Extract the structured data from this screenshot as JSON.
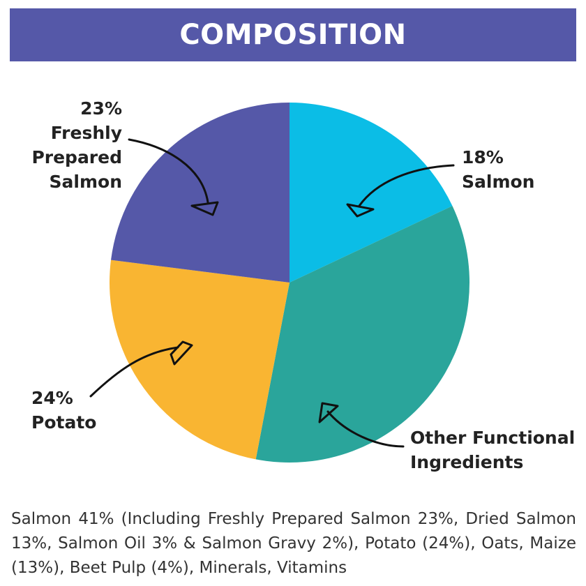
{
  "header": {
    "title": "COMPOSITION"
  },
  "chart_data": {
    "type": "pie",
    "title": "COMPOSITION",
    "slices": [
      {
        "label_lines": [
          "18%",
          "Salmon"
        ],
        "value": 18,
        "color": "#0bbde6"
      },
      {
        "label_lines": [
          "Other Functional",
          "Ingredients"
        ],
        "value": 35,
        "color": "#2aa59b"
      },
      {
        "label_lines": [
          "24%",
          "Potato"
        ],
        "value": 24,
        "color": "#f9b532"
      },
      {
        "label_lines": [
          "23%",
          "Freshly",
          "Prepared",
          "Salmon"
        ],
        "value": 23,
        "color": "#5558a8"
      }
    ],
    "start": "top",
    "direction": "clockwise"
  },
  "footer": {
    "text": "Salmon 41% (Including Freshly Prepared Salmon 23%, Dried Salmon 13%, Salmon Oil 3% & Salmon Gravy 2%), Potato (24%), Oats, Maize (13%), Beet Pulp (4%), Minerals, Vitamins"
  }
}
